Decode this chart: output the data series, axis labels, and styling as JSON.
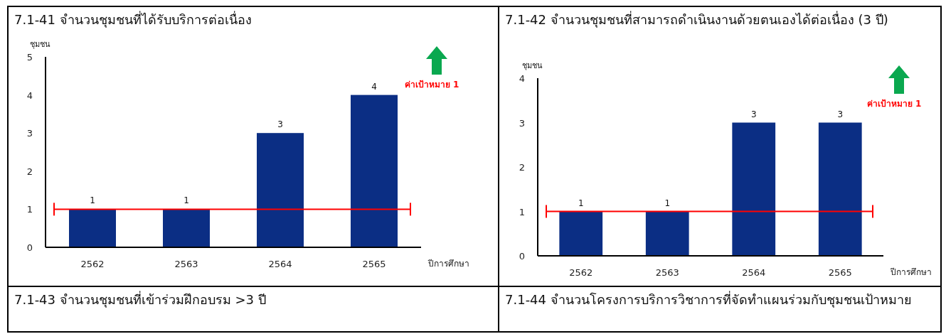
{
  "chart_data": [
    {
      "type": "bar",
      "title": "7.1-41 จำนวนชุมชนที่ได้รับบริการต่อเนื่อง",
      "ylabel": "ชุมชน",
      "xlabel": "ปีการศึกษา",
      "categories": [
        "2562",
        "2563",
        "2564",
        "2565"
      ],
      "values": [
        1,
        1,
        3,
        4
      ],
      "color": "#0b2e84",
      "ylim": [
        0,
        5
      ],
      "yticks": [
        0,
        1,
        2,
        3,
        4,
        5
      ],
      "data_labels": true,
      "ref_lines": [
        {
          "axis": "y",
          "value": 1,
          "label": "ค่าเป้าหมาย 1",
          "color": "#ff0000"
        }
      ]
    },
    {
      "type": "bar",
      "title": "7.1-42 จำนวนชุมชนที่สามารถดำเนินงานด้วยตนเองได้ต่อเนื่อง (3 ปี)",
      "ylabel": "ชุมชน",
      "xlabel": "ปีการศึกษา",
      "categories": [
        "2562",
        "2563",
        "2564",
        "2565"
      ],
      "values": [
        1,
        1,
        3,
        3
      ],
      "color": "#0b2e84",
      "ylim": [
        0,
        4
      ],
      "yticks": [
        0,
        1,
        2,
        3,
        4
      ],
      "data_labels": true,
      "ref_lines": [
        {
          "axis": "y",
          "value": 1,
          "label": "ค่าเป้าหมาย 1",
          "color": "#ff0000"
        }
      ]
    },
    {
      "type": "other",
      "title": "7.1-43 จำนวนชุมชนที่เข้าร่วมฝึกอบรม >3 ปี"
    },
    {
      "type": "other",
      "title": "7.1-44 จำนวนโครงการบริการวิชาการที่จัดทำแผนร่วมกับชุมชนเป้าหมาย"
    }
  ]
}
